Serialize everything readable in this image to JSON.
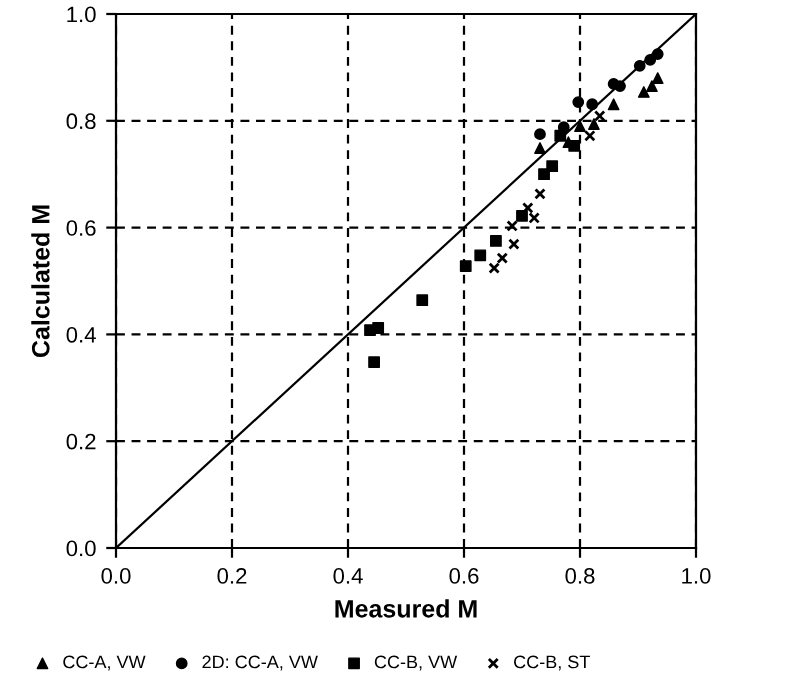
{
  "chart_data": {
    "type": "scatter",
    "xlabel": "Measured M",
    "ylabel": "Calculated M",
    "xlim": [
      0,
      1
    ],
    "ylim": [
      0,
      1
    ],
    "xticks": [
      {
        "value": 0,
        "label": "0.0"
      },
      0.2,
      0.4,
      0.6,
      0.8,
      {
        "value": 1,
        "label": "1.0"
      }
    ],
    "yticks": [
      {
        "value": 0,
        "label": "0.0"
      },
      0.2,
      0.4,
      0.6,
      0.8,
      {
        "value": 1,
        "label": "1.0"
      }
    ],
    "grid": true,
    "legend": "bottom",
    "series": [
      {
        "name": "CC-A, VW",
        "color": "#000000",
        "marker": "triangle",
        "x": [
          0.731,
          0.8,
          0.824,
          0.858,
          0.91,
          0.924,
          0.934,
          0.78
        ],
        "values": [
          0.749,
          0.79,
          0.794,
          0.831,
          0.854,
          0.865,
          0.88,
          0.76
        ]
      },
      {
        "name": "2D: CC-A, VW",
        "color": "#000000",
        "marker": "circle",
        "x": [
          0.731,
          0.772,
          0.797,
          0.821,
          0.858,
          0.869,
          0.903,
          0.921,
          0.934
        ],
        "values": [
          0.775,
          0.788,
          0.835,
          0.831,
          0.869,
          0.865,
          0.903,
          0.914,
          0.925
        ]
      },
      {
        "name": "CC-B, VW",
        "color": "#000000",
        "marker": "square",
        "x": [
          0.766,
          0.79,
          0.752,
          0.738,
          0.7,
          0.655,
          0.628,
          0.603,
          0.528,
          0.438,
          0.452,
          0.445
        ],
        "values": [
          0.772,
          0.753,
          0.715,
          0.7,
          0.622,
          0.575,
          0.548,
          0.528,
          0.464,
          0.408,
          0.412,
          0.348
        ]
      },
      {
        "name": "CC-B, ST",
        "color": "#000000",
        "marker": "cross",
        "x": [
          0.652,
          0.666,
          0.686,
          0.683,
          0.71,
          0.721,
          0.731,
          0.834,
          0.817
        ],
        "values": [
          0.524,
          0.543,
          0.569,
          0.603,
          0.637,
          0.618,
          0.663,
          0.809,
          0.772
        ]
      },
      {
        "type": "line",
        "color": "#000000",
        "line_style": "solid",
        "x": [
          0,
          1
        ],
        "values": [
          0,
          1
        ]
      }
    ]
  }
}
